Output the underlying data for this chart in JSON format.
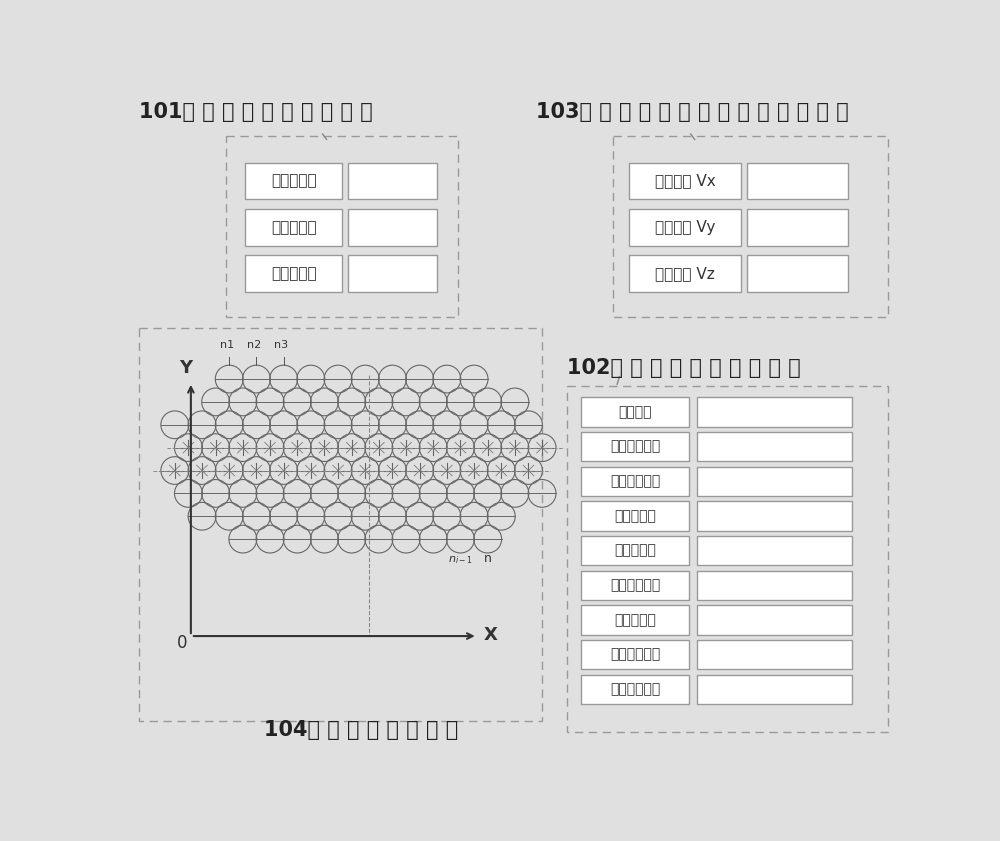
{
  "bg_color": "#e0e0e0",
  "box_fc": "#ffffff",
  "border_color": "#888888",
  "text_color": "#333333",
  "dark_color": "#222222",
  "label101": "101「 」 「 」 「 」 「 」 「 」",
  "label103": "103「 」 「 」 「 」 「 」 「 」 「 」 「 」",
  "label102": "102「 」 「 」 「 」 「 」 「 」",
  "label104": "104「 」 「 」 「 」 「 」",
  "panel101_labels": [
    "产品型号：",
    "产品批次：",
    "产品编号："
  ],
  "panel103_labels": [
    "空程速度 Vx",
    "空程速度 Vy",
    "空程速度 Vz"
  ],
  "panel102_labels": [
    "胀接面：",
    "胀管器型号：",
    "胀管器编号：",
    "胀接长度：",
    "胀接力矩：",
    "胀接总孔数：",
    "胀接孔位：",
    "已胀接孔数：",
    "未胀接孔数："
  ]
}
